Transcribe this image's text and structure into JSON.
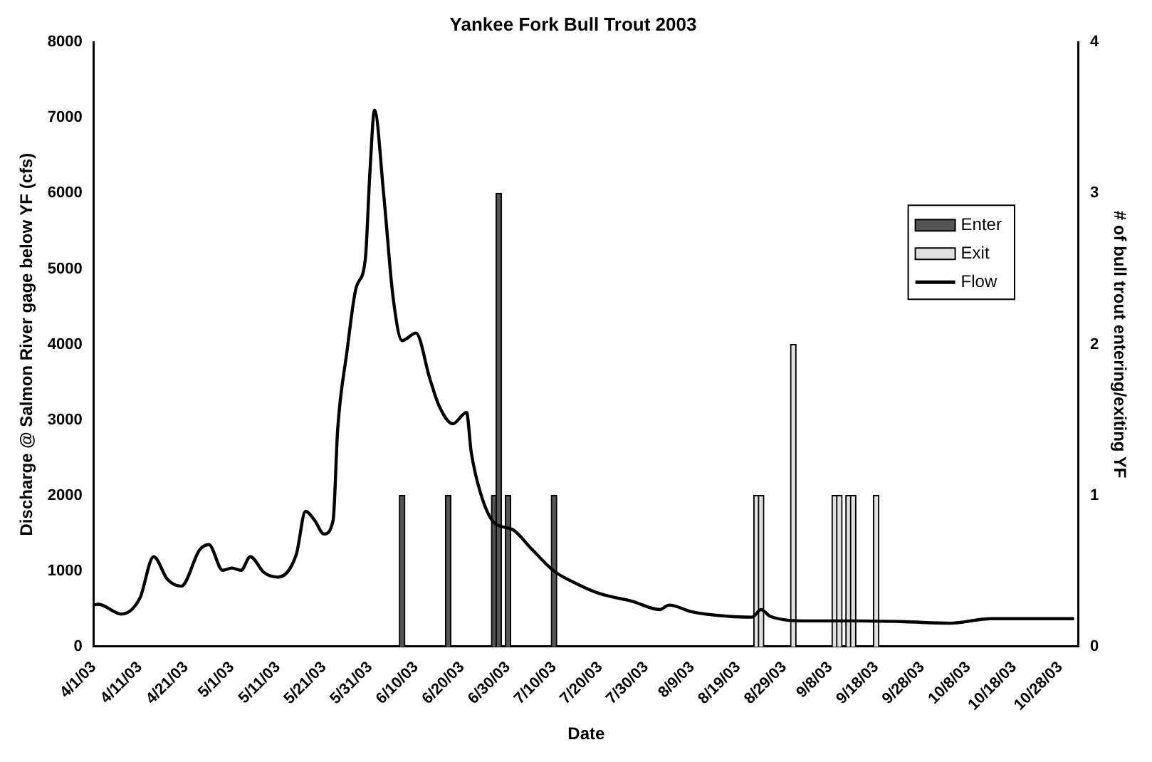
{
  "chart_data": {
    "type": "line",
    "title": "Yankee Fork Bull Trout 2003",
    "xlabel": "Date",
    "ylabel": "Discharge @ Salmon River gage below YF (cfs)",
    "y2label": "# of bull trout entering/exiting YF",
    "xlim": [
      "2003-04-01",
      "2003-11-01"
    ],
    "xticks": [
      {
        "value": "2003-04-01",
        "label": "4/1/03"
      },
      {
        "value": "2003-04-11",
        "label": "4/11/03"
      },
      {
        "value": "2003-04-21",
        "label": "4/21/03"
      },
      {
        "value": "2003-05-01",
        "label": "5/1/03"
      },
      {
        "value": "2003-05-11",
        "label": "5/11/03"
      },
      {
        "value": "2003-05-21",
        "label": "5/21/03"
      },
      {
        "value": "2003-05-31",
        "label": "5/31/03"
      },
      {
        "value": "2003-06-10",
        "label": "6/10/03"
      },
      {
        "value": "2003-06-20",
        "label": "6/20/03"
      },
      {
        "value": "2003-06-30",
        "label": "6/30/03"
      },
      {
        "value": "2003-07-10",
        "label": "7/10/03"
      },
      {
        "value": "2003-07-20",
        "label": "7/20/03"
      },
      {
        "value": "2003-07-30",
        "label": "7/30/03"
      },
      {
        "value": "2003-08-09",
        "label": "8/9/03"
      },
      {
        "value": "2003-08-19",
        "label": "8/19/03"
      },
      {
        "value": "2003-08-29",
        "label": "8/29/03"
      },
      {
        "value": "2003-09-08",
        "label": "9/8/03"
      },
      {
        "value": "2003-09-18",
        "label": "9/18/03"
      },
      {
        "value": "2003-09-28",
        "label": "9/28/03"
      },
      {
        "value": "2003-10-08",
        "label": "10/8/03"
      },
      {
        "value": "2003-10-18",
        "label": "10/18/03"
      },
      {
        "value": "2003-10-28",
        "label": "10/28/03"
      }
    ],
    "ylim": [
      0,
      8000
    ],
    "yticks": [
      0,
      1000,
      2000,
      3000,
      4000,
      5000,
      6000,
      7000,
      8000
    ],
    "y2lim": [
      0,
      4
    ],
    "y2ticks": [
      0,
      1,
      2,
      3,
      4
    ],
    "grid": false,
    "legend": "right",
    "series": [
      {
        "name": "Enter",
        "type": "bar",
        "axis": "y2",
        "color": "#555555",
        "x": [
          "2003-06-07",
          "2003-06-17",
          "2003-06-27",
          "2003-06-28",
          "2003-06-30",
          "2003-07-10"
        ],
        "values": [
          1,
          1,
          1,
          3,
          1,
          1
        ]
      },
      {
        "name": "Exit",
        "type": "bar",
        "axis": "y2",
        "color": "#e0e0e0",
        "x": [
          "2003-08-23",
          "2003-08-24",
          "2003-08-31",
          "2003-09-09",
          "2003-09-10",
          "2003-09-12",
          "2003-09-13",
          "2003-09-18"
        ],
        "values": [
          1,
          1,
          2,
          1,
          1,
          1,
          1,
          1
        ]
      },
      {
        "name": "Flow",
        "axis": "y",
        "color": "#000000",
        "x": [
          "2003-04-01",
          "2003-04-02",
          "2003-04-07",
          "2003-04-11",
          "2003-04-14",
          "2003-04-17",
          "2003-04-20",
          "2003-04-24",
          "2003-04-26",
          "2003-04-29",
          "2003-05-01",
          "2003-05-03",
          "2003-05-05",
          "2003-05-08",
          "2003-05-11",
          "2003-05-15",
          "2003-05-17",
          "2003-05-19",
          "2003-05-21",
          "2003-05-23",
          "2003-05-24",
          "2003-05-26",
          "2003-05-28",
          "2003-05-30",
          "2003-05-31",
          "2003-06-01",
          "2003-06-03",
          "2003-06-05",
          "2003-06-07",
          "2003-06-10",
          "2003-06-13",
          "2003-06-15",
          "2003-06-18",
          "2003-06-21",
          "2003-06-22",
          "2003-06-24",
          "2003-06-27",
          "2003-07-01",
          "2003-07-05",
          "2003-07-10",
          "2003-07-15",
          "2003-07-20",
          "2003-07-27",
          "2003-08-02",
          "2003-08-04",
          "2003-08-09",
          "2003-08-17",
          "2003-08-22",
          "2003-08-24",
          "2003-08-26",
          "2003-09-03",
          "2003-09-14",
          "2003-09-24",
          "2003-10-04",
          "2003-10-13",
          "2003-10-21",
          "2003-10-31"
        ],
        "values": [
          550,
          560,
          430,
          640,
          1190,
          890,
          800,
          1280,
          1350,
          1010,
          1040,
          1010,
          1190,
          980,
          920,
          1220,
          1790,
          1670,
          1490,
          1670,
          2880,
          3900,
          4750,
          5130,
          6280,
          7100,
          5980,
          4640,
          4050,
          4150,
          3550,
          3190,
          2950,
          3100,
          2580,
          2040,
          1640,
          1550,
          1300,
          1000,
          830,
          700,
          600,
          490,
          550,
          460,
          400,
          390,
          490,
          400,
          340,
          340,
          330,
          310,
          370,
          370,
          370
        ]
      }
    ]
  }
}
